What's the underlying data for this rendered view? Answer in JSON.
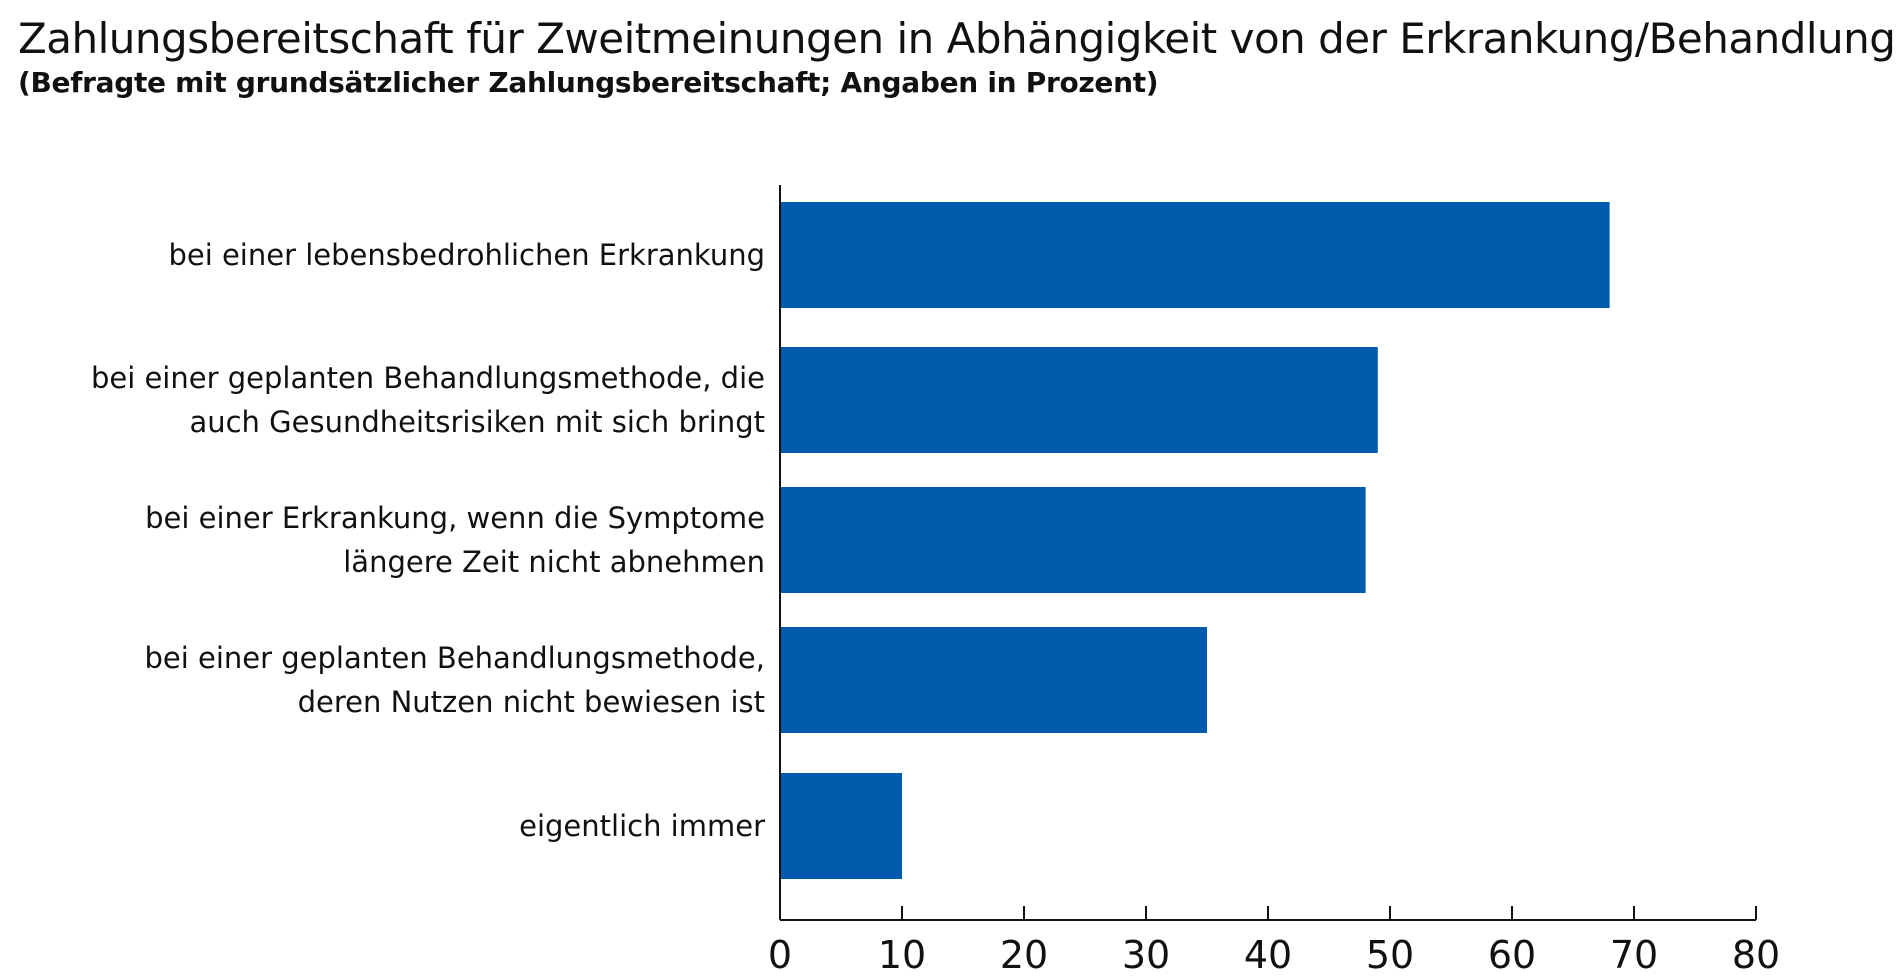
{
  "chart_data": {
    "type": "bar",
    "orientation": "horizontal",
    "title": "Zahlungsbereitschaft für Zweitmeinungen in Abhängigkeit von der Erkrankung/Behandlung",
    "subtitle": "(Befragte mit grundsätzlicher Zahlungsbereitschaft; Angaben in Prozent)",
    "categories": [
      [
        "bei einer lebensbedrohlichen Erkrankung"
      ],
      [
        "bei einer geplanten Behandlungsmethode, die",
        "auch Gesundheitsrisiken mit sich bringt"
      ],
      [
        "bei einer Erkrankung, wenn die Symptome",
        "längere Zeit nicht abnehmen"
      ],
      [
        "bei einer geplanten Behandlungsmethode,",
        "deren Nutzen nicht bewiesen ist"
      ],
      [
        "eigentlich immer"
      ]
    ],
    "values": [
      68,
      49,
      48,
      35,
      10
    ],
    "xlim": [
      0,
      80
    ],
    "xticks": [
      0,
      10,
      20,
      30,
      40,
      50,
      60,
      70,
      80
    ],
    "grid": false,
    "bar_color": "#005BAC",
    "axis_color": "#111111"
  }
}
